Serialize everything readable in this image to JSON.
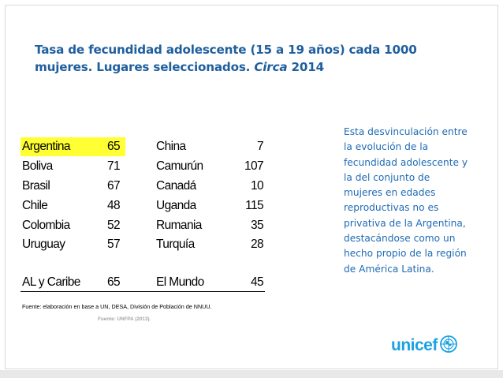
{
  "title": {
    "line1": "Tasa de fecundidad adolescente (15 a 19 años) cada 1000",
    "line2_pre": "mujeres. Lugares seleccionados. ",
    "line2_em": "Circa",
    "line2_post": " 2014"
  },
  "table": {
    "rows": [
      {
        "country_a": "Argentina",
        "value_a": "65",
        "country_b": "China",
        "value_b": "7",
        "highlight": true
      },
      {
        "country_a": "Boliva",
        "value_a": "71",
        "country_b": "Camurún",
        "value_b": "107"
      },
      {
        "country_a": "Brasil",
        "value_a": "67",
        "country_b": "Canadá",
        "value_b": "10"
      },
      {
        "country_a": "Chile",
        "value_a": "48",
        "country_b": "Uganda",
        "value_b": "115"
      },
      {
        "country_a": "Colombia",
        "value_a": "52",
        "country_b": "Rumania",
        "value_b": "35"
      },
      {
        "country_a": "Uruguay",
        "value_a": "57",
        "country_b": "Turquía",
        "value_b": "28"
      },
      {
        "country_a": "AL y Caribe",
        "value_a": "65",
        "country_b": "El Mundo",
        "value_b": "45"
      }
    ],
    "highlight_color": "#ffff33"
  },
  "source_note": "Fuente: elaboración en base a UN, DESA, División de Población de NNUU.",
  "source_unfpa": "Fuente: UNFPA (2013).",
  "side_text": "Esta desvinculación entre la evolución de la fecundidad adolescente y la del conjunto de mujeres en edades reproductivas no es privativa de la Argentina, destacándose como un hecho propio de la región de América Latina.",
  "logo": {
    "text": "unicef",
    "icon": "unicef-emblem-icon",
    "color": "#1ba1e2"
  },
  "colors": {
    "title": "#1f5f9e",
    "side_text": "#1f6bb5"
  }
}
